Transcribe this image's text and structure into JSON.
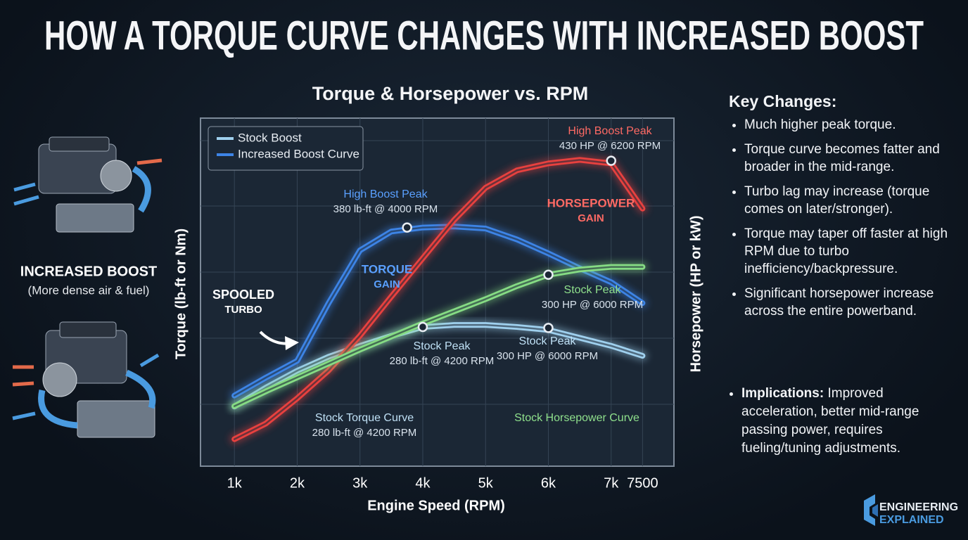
{
  "title": "HOW A TORQUE CURVE CHANGES WITH INCREASED BOOST",
  "left_panel": {
    "heading": "INCREASED BOOST",
    "subheading": "(More dense air & fuel)"
  },
  "chart_data": {
    "type": "line",
    "title": "Torque & Horsepower vs. RPM",
    "x_label": "Engine Speed (RPM)",
    "y_label": "Torque (lb-ft or Nm)",
    "y2_label": "Horsepower (HP or kW)",
    "x": [
      1000,
      1500,
      2000,
      2500,
      3000,
      3500,
      4000,
      4500,
      5000,
      5500,
      6000,
      6500,
      7000,
      7500
    ],
    "xlim": [
      460,
      8000
    ],
    "xticks": [
      {
        "value": 1000,
        "label": "1k"
      },
      {
        "value": 2000,
        "label": "2k"
      },
      {
        "value": 3000,
        "label": "3k"
      },
      {
        "value": 4000,
        "label": "4k"
      },
      {
        "value": 5000,
        "label": "5k"
      },
      {
        "value": 6000,
        "label": "6k"
      },
      {
        "value": 7000,
        "label": "7k"
      },
      7500
    ],
    "ylim": [
      140,
      490
    ],
    "y2lim": [
      80,
      480
    ],
    "grid": true,
    "legend": "upper left",
    "series": [
      {
        "name": "Stock Boost",
        "color": "#9fd0ee",
        "values": [
          200,
          219,
          236,
          250,
          261,
          271,
          280,
          282,
          282,
          280,
          277,
          269,
          261,
          251
        ]
      },
      {
        "name": "Increased Boost  Curve",
        "color": "#3d84e6",
        "values": [
          211,
          229,
          246,
          304,
          357,
          376,
          380,
          381,
          379,
          368,
          354,
          339,
          325,
          304
        ]
      },
      {
        "color": "#e8413f",
        "axis": "y2",
        "values": [
          111,
          129,
          158,
          190,
          230,
          275,
          319,
          363,
          400,
          420,
          428,
          432,
          428,
          376
        ]
      },
      {
        "color": "#86dc84",
        "axis": "y2",
        "values": [
          149,
          166,
          182,
          198,
          214,
          229,
          244,
          258,
          272,
          287,
          300,
          306,
          309,
          309
        ]
      }
    ],
    "annotations": [
      {
        "lines": [
          "High Boost Peak",
          "380 lb-ft @ 4000 RPM"
        ],
        "x": 3750,
        "y": 380
      },
      {
        "lines": [
          "High Boost Peak",
          "430 HP @ 6200 RPM"
        ],
        "x": 7000,
        "y": 431,
        "axis": "y2"
      },
      {
        "lines": [
          "Stock Peak",
          "280 lb-ft @ 4200 RPM"
        ],
        "x": 4000,
        "y": 280
      },
      {
        "lines": [
          "Stock Peak",
          "300 HP @ 6000 RPM"
        ],
        "x": 6000,
        "y": 279
      },
      {
        "lines": [
          "Stock Peak",
          "300 HP @ 6000 RPM"
        ],
        "x": 6000,
        "y": 300,
        "axis": "y2"
      },
      {
        "lines": [
          "TORQUE",
          "GAIN"
        ]
      },
      {
        "lines": [
          "HORSEPOWER",
          "GAIN"
        ]
      },
      {
        "lines": [
          "SPOOLED",
          "TURBO"
        ]
      },
      {
        "lines": [
          "Stock Torque Curve",
          "280 lb-ft @ 4200 RPM"
        ]
      },
      {
        "lines": [
          "Stock Horsepower Curve"
        ]
      }
    ]
  },
  "key_changes": {
    "title": "Key Changes:",
    "items": [
      "Much higher peak torque.",
      "Torque curve becomes fatter and broader in the mid-range.",
      "Turbo lag may increase (torque comes on later/stronger).",
      "Torque may taper off faster at high RPM due to turbo inefficiency/backpressure.",
      "Significant horsepower increase across the entire powerband."
    ]
  },
  "implications": {
    "label": "Implications:",
    "text": "Improved acceleration, better mid-range passing power, requires fueling/tuning adjustments."
  },
  "logo": {
    "line1": "ENGINEERING",
    "line2": "EXPLAINED"
  }
}
